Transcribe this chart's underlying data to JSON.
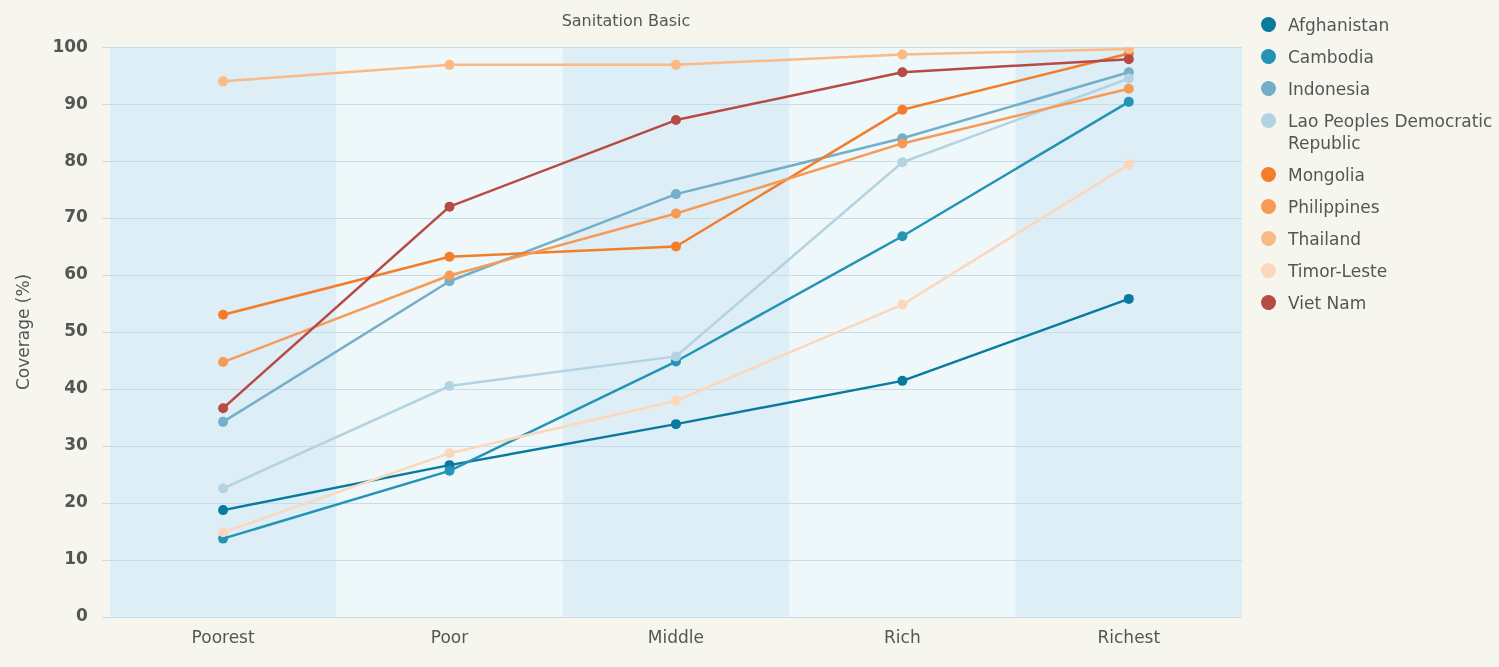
{
  "chart_data": {
    "type": "line",
    "title": "Sanitation Basic",
    "ylabel": "Coverage (%)",
    "categories": [
      "Poorest",
      "Poor",
      "Middle",
      "Rich",
      "Richest"
    ],
    "ylim": [
      0,
      100
    ],
    "yticks": [
      0,
      10,
      20,
      30,
      40,
      50,
      60,
      70,
      80,
      90,
      100
    ],
    "grid": "y",
    "legend": "top right",
    "marker": "circle",
    "line_style": "solid",
    "bands": [
      {
        "axis": "x",
        "from": "Poorest",
        "to": "Poorest",
        "color": "#ddeef6"
      },
      {
        "axis": "x",
        "from": "Poor",
        "to": "Poor",
        "color": "#eef7fa"
      },
      {
        "axis": "x",
        "from": "Middle",
        "to": "Middle",
        "color": "#ddeef6"
      },
      {
        "axis": "x",
        "from": "Rich",
        "to": "Rich",
        "color": "#eef7fa"
      },
      {
        "axis": "x",
        "from": "Richest",
        "to": "Richest",
        "color": "#ddeef6"
      }
    ],
    "series": [
      {
        "name": "Afghanistan",
        "color": "#087a9e",
        "values": [
          18.7,
          26.6,
          33.8,
          41.4,
          55.8
        ]
      },
      {
        "name": "Cambodia",
        "color": "#2394b5",
        "values": [
          13.7,
          25.6,
          44.8,
          66.8,
          90.4
        ]
      },
      {
        "name": "Indonesia",
        "color": "#73afc8",
        "values": [
          34.2,
          58.9,
          74.2,
          84.0,
          95.6
        ]
      },
      {
        "name": "Lao Peoples Democratic Republic",
        "color": "#b4d3e2",
        "values": [
          22.5,
          40.5,
          45.7,
          79.8,
          94.5
        ]
      },
      {
        "name": "Mongolia",
        "color": "#f47d2a",
        "values": [
          53.0,
          63.2,
          65.0,
          89.0,
          98.9
        ]
      },
      {
        "name": "Philippines",
        "color": "#f79a55",
        "values": [
          44.7,
          59.9,
          70.8,
          83.1,
          92.7
        ]
      },
      {
        "name": "Thailand",
        "color": "#fbb985",
        "values": [
          94.0,
          96.9,
          96.9,
          98.7,
          99.7
        ]
      },
      {
        "name": "Timor-Leste",
        "color": "#fdd7bb",
        "values": [
          14.8,
          28.7,
          37.9,
          54.8,
          79.4
        ]
      },
      {
        "name": "Viet Nam",
        "color": "#b84a44",
        "values": [
          36.6,
          72.0,
          87.2,
          95.6,
          97.9
        ]
      }
    ]
  }
}
